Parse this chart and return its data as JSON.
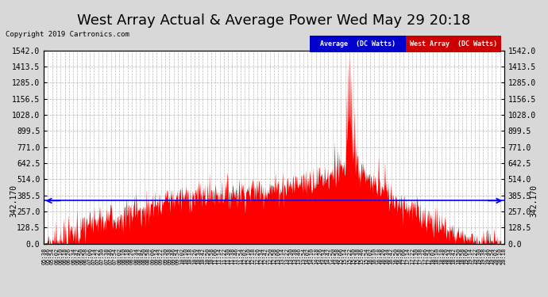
{
  "title": "West Array Actual & Average Power Wed May 29 20:18",
  "copyright_text": "Copyright 2019 Cartronics.com",
  "average_value": 342.17,
  "y_max": 1542.0,
  "y_min": 0.0,
  "yticks": [
    0.0,
    128.5,
    257.0,
    385.5,
    514.0,
    642.5,
    771.0,
    899.5,
    1028.0,
    1156.5,
    1285.0,
    1413.5,
    1542.0
  ],
  "background_color": "#d8d8d8",
  "plot_bg_color": "#ffffff",
  "fill_color": "#ff0000",
  "avg_line_color": "#0000ff",
  "legend_avg_bg": "#0000cc",
  "legend_west_bg": "#cc0000",
  "title_fontsize": 13,
  "legend_avg_label": "Average  (DC Watts)",
  "legend_west_label": "West Array  (DC Watts)",
  "avg_label": "342.170"
}
